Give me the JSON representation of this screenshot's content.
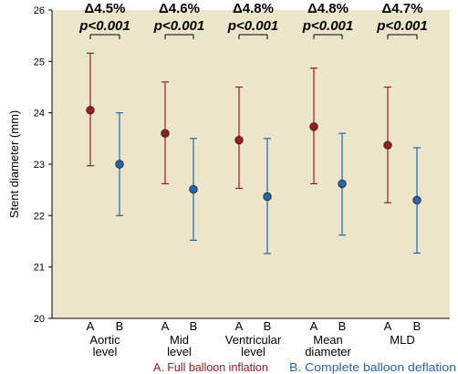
{
  "chart_data": {
    "type": "scatter",
    "ylabel": "Stent diameter (mm)",
    "ylim": [
      20,
      26
    ],
    "yticks": [
      20,
      21,
      22,
      23,
      24,
      25,
      26
    ],
    "grid": false,
    "background_color": "#ebe5c9",
    "groups": [
      {
        "label_lines": [
          "Aortic",
          "level"
        ],
        "delta": "Δ4.5%",
        "pvalue": "p<0.001"
      },
      {
        "label_lines": [
          "Mid",
          "level"
        ],
        "delta": "Δ4.6%",
        "pvalue": "p<0.001"
      },
      {
        "label_lines": [
          "Ventricular",
          "level"
        ],
        "delta": "Δ4.8%",
        "pvalue": "p<0.001"
      },
      {
        "label_lines": [
          "Mean",
          "diameter"
        ],
        "delta": "Δ4.8%",
        "pvalue": "p<0.001"
      },
      {
        "label_lines": [
          "MLD"
        ],
        "delta": "Δ4.7%",
        "pvalue": "p<0.001"
      }
    ],
    "series": [
      {
        "name": "A. Full balloon inflation",
        "short": "A",
        "color": "#9b1b22",
        "values": [
          24.05,
          23.6,
          23.47,
          23.73,
          23.37
        ],
        "upper": [
          25.16,
          24.6,
          24.5,
          24.87,
          24.5
        ],
        "lower": [
          22.97,
          22.62,
          22.53,
          22.62,
          22.25
        ]
      },
      {
        "name": "B. Complete balloon deflation",
        "short": "B",
        "color": "#2a64a8",
        "values": [
          23.0,
          22.51,
          22.37,
          22.62,
          22.3
        ],
        "upper": [
          24.0,
          23.5,
          23.5,
          23.6,
          23.32
        ],
        "lower": [
          22.0,
          21.52,
          21.26,
          21.62,
          21.27
        ]
      }
    ]
  }
}
